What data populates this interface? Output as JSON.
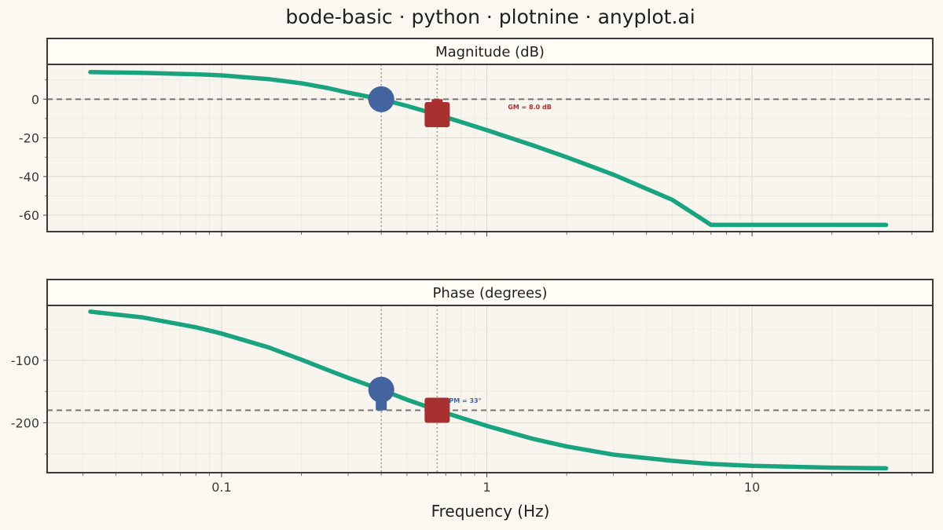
{
  "chart_data": {
    "type": "line",
    "title": "bode-basic · python · plotnine · anyplot.ai",
    "xlabel": "Frequency (Hz)",
    "xscale": "log",
    "xlim": [
      0.022,
      48
    ],
    "x_ticks": [
      {
        "value": 0.1,
        "label": "0.1"
      },
      {
        "value": 1,
        "label": "1"
      },
      {
        "value": 10,
        "label": "10"
      }
    ],
    "colors": {
      "background": "#FAF8F1",
      "panel": "#F8F5EE",
      "strip": "#FFFDF6",
      "line": "#1AA37F",
      "gain_crossover_marker": "#4464A0",
      "phase_crossover_marker": "#A83030",
      "reference_line": "#757575",
      "guide_line": "#A6A19A"
    },
    "gain_crossover_freq": 0.4,
    "phase_crossover_freq": 0.65,
    "panels": [
      {
        "strip": "Magnitude (dB)",
        "ylim": [
          -68.5,
          18
        ],
        "y_ticks": [
          {
            "value": 0,
            "label": "0"
          },
          {
            "value": -20,
            "label": "-20"
          },
          {
            "value": -40,
            "label": "-40"
          },
          {
            "value": -60,
            "label": "-60"
          }
        ],
        "reference_y": 0,
        "series": [
          {
            "x": [
              0.032,
              0.05,
              0.08,
              0.1,
              0.15,
              0.2,
              0.25,
              0.3,
              0.4,
              0.5,
              0.65,
              0.8,
              1.0,
              1.5,
              2,
              3,
              5,
              7,
              10,
              20,
              32
            ],
            "y": [
              14.0,
              13.6,
              12.9,
              12.3,
              10.4,
              8.2,
              5.8,
              3.4,
              0.0,
              -3.5,
              -8.0,
              -11.8,
              -16.0,
              -24.0,
              -30.0,
              -39.0,
              -52.0,
              -65.0,
              -65.0,
              -65.0,
              -65.0
            ]
          }
        ],
        "markers": [
          {
            "kind": "circle",
            "x": 0.4,
            "y": 0,
            "color_key": "gain_crossover_marker"
          },
          {
            "kind": "square",
            "x": 0.65,
            "y": -8,
            "color_key": "phase_crossover_marker"
          }
        ],
        "margin_bar": {
          "x": 0.65,
          "y_from": 0,
          "y_to": -8,
          "color_key": "phase_crossover_marker"
        },
        "annotation": {
          "text": "GM = 8.0 dB",
          "x": 1.2,
          "y": -4,
          "color_key": "phase_crossover_marker"
        }
      },
      {
        "strip": "Phase (degrees)",
        "ylim": [
          -280,
          -12
        ],
        "y_ticks": [
          {
            "value": -100,
            "label": "-100"
          },
          {
            "value": -200,
            "label": "-200"
          }
        ],
        "reference_y": -180,
        "series": [
          {
            "x": [
              0.032,
              0.05,
              0.08,
              0.1,
              0.15,
              0.2,
              0.25,
              0.3,
              0.4,
              0.5,
              0.65,
              0.8,
              1.0,
              1.5,
              2,
              3,
              5,
              7,
              10,
              20,
              32
            ],
            "y": [
              -22,
              -31,
              -47,
              -57,
              -79,
              -99,
              -115,
              -128,
              -147,
              -163,
              -180,
              -192,
              -205,
              -226,
              -238,
              -251,
              -261,
              -266,
              -269,
              -272,
              -273
            ]
          }
        ],
        "markers": [
          {
            "kind": "circle",
            "x": 0.4,
            "y": -147,
            "color_key": "gain_crossover_marker"
          },
          {
            "kind": "square",
            "x": 0.65,
            "y": -180,
            "color_key": "phase_crossover_marker"
          }
        ],
        "margin_bar": {
          "x": 0.4,
          "y_from": -147,
          "y_to": -180,
          "color_key": "gain_crossover_marker"
        },
        "annotation": {
          "text": "PM = 33°",
          "x": 0.72,
          "y": -164,
          "color_key": "gain_crossover_marker"
        }
      }
    ]
  }
}
